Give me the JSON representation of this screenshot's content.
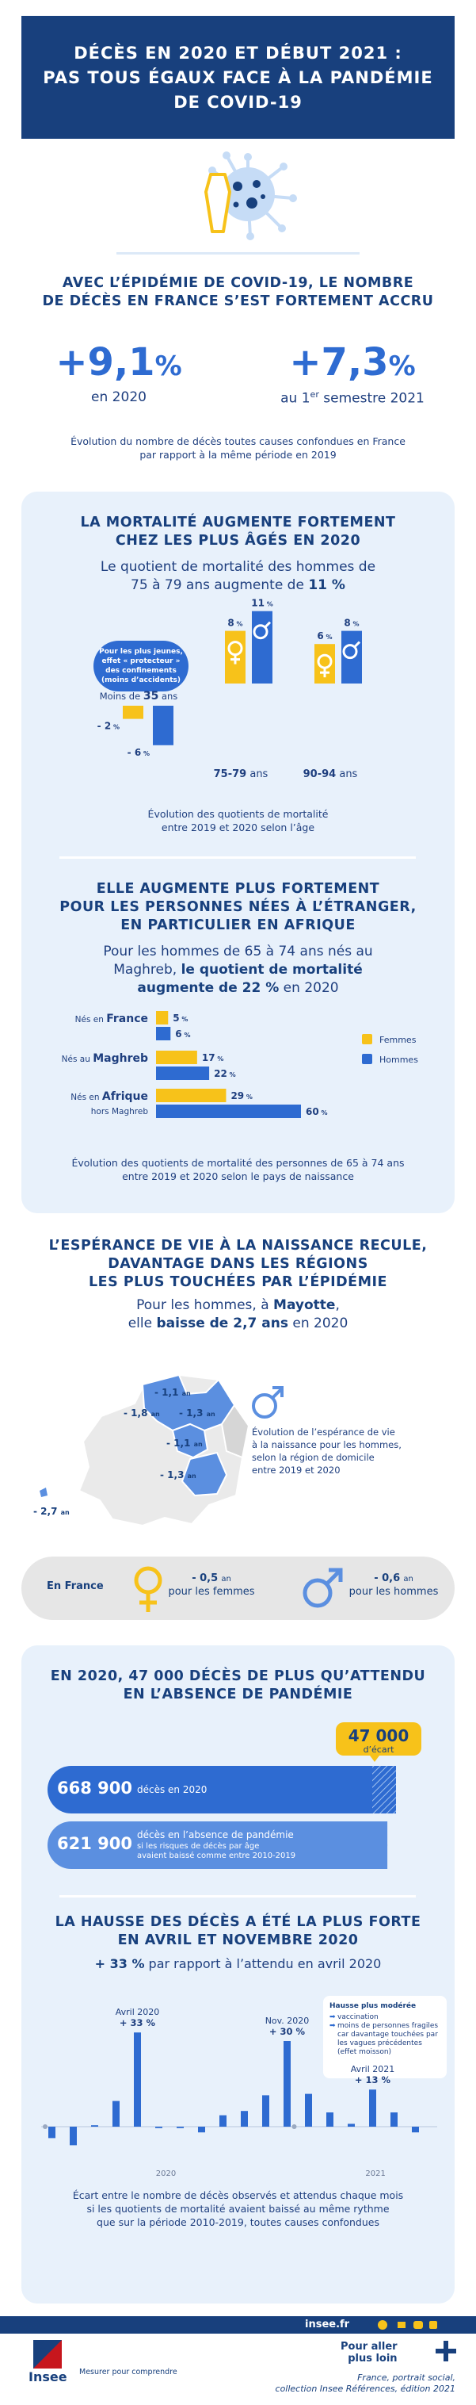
{
  "header": {
    "line1": "DÉCÈS EN 2020 ET DÉBUT 2021 :",
    "line2": "PAS TOUS ÉGAUX FACE À LA PANDÉMIE",
    "line3": "DE COVID-19"
  },
  "intro": {
    "title1": "AVEC L’ÉPIDÉMIE DE COVID-19, LE NOMBRE",
    "title2": "DE DÉCÈS EN FRANCE S’EST FORTEMENT ACCRU",
    "stat1_value": "+9,1",
    "stat1_unit": "%",
    "stat1_label": "en 2020",
    "stat2_value": "+7,3",
    "stat2_unit": "%",
    "stat2_label_pre": "au 1",
    "stat2_label_sup": "er",
    "stat2_label_post": " semestre 2021",
    "note1": "Évolution du nombre de décès toutes causes confondues en France",
    "note2": "par rapport à la même période en 2019"
  },
  "age_section": {
    "title1": "LA MORTALITÉ AUGMENTE FORTEMENT",
    "title2": "CHEZ LES PLUS ÂGÉS EN 2020",
    "sub1": "Le quotient de mortalité des hommes de",
    "sub2_pre": "75 à 79 ans augmente de ",
    "sub2_bold": "11 %",
    "bubble": [
      "Pour les plus jeunes,",
      "effet « protecteur »",
      "des confinements",
      "(moins d’accidents)"
    ],
    "note1": "Évolution des quotients de mortalité",
    "note2": "entre 2019 et 2020 selon l’âge"
  },
  "foreign_section": {
    "title1": "ELLE AUGMENTE PLUS FORTEMENT",
    "title2": "POUR LES PERSONNES NÉES À L’ÉTRANGER,",
    "title3": "EN PARTICULIER EN AFRIQUE",
    "sub1": "Pour les hommes de 65 à 74 ans nés au",
    "sub2_pre": "Maghreb, ",
    "sub2_bold": "le quotient de mortalité",
    "sub3_bold": "augmente de 22 %",
    "sub3_post": " en 2020",
    "note1": "Évolution des quotients de mortalité des personnes de 65 à 74 ans",
    "note2": "entre 2019 et 2020 selon le pays de naissance"
  },
  "life_section": {
    "title1": "L’ESPÉRANCE DE VIE À LA NAISSANCE RECULE,",
    "title2": "DAVANTAGE DANS LES RÉGIONS",
    "title3": "LES PLUS TOUCHÉES PAR L’ÉPIDÉMIE",
    "sub1_pre": "Pour les hommes, à ",
    "sub1_bold": "Mayotte",
    "sub1_post": ",",
    "sub2_pre": "elle ",
    "sub2_bold": "baisse de 2,7 ans",
    "sub2_post": " en 2020",
    "map_labels": [
      "- 1,1",
      "- 1,8",
      "- 1,3",
      "- 1,1",
      "- 1,3",
      "- 2,7"
    ],
    "map_unit": "an",
    "legend1": "Évolution de l’espérance de vie",
    "legend2": "à la naissance pour les hommes,",
    "legend3": "selon la région de domicile",
    "legend4": "entre 2019 et 2020",
    "france_label": "En France",
    "women_value": "- 0,5",
    "women_unit": "an",
    "women_label": "pour les femmes",
    "men_value": "- 0,6",
    "men_unit": "an",
    "men_label": "pour les hommes"
  },
  "excess_section": {
    "title1": "EN 2020, 47 000 DÉCÈS DE PLUS QU’ATTENDU",
    "title2": "EN L’ABSENCE DE PANDÉMIE",
    "gap_value": "47 000",
    "gap_label": "d’écart",
    "bar1_value": "668 900",
    "bar1_label": "décès en 2020",
    "bar2_value": "621 900",
    "bar2_label1": "décès en l’absence de pandémie",
    "bar2_label2": "si les risques de décès par âge",
    "bar2_label3": "avaient baissé comme entre 2010-2019"
  },
  "monthly_section": {
    "title1": "LA HAUSSE DES DÉCÈS A ÉTÉ LA PLUS FORTE",
    "title2": "EN AVRIL ET NOVEMBRE 2020",
    "sub_bold": "+ 33 %",
    "sub_post": " par rapport à l’attendu en avril 2020",
    "legend_title": "Hausse plus modérée",
    "legend_items": [
      "vaccination",
      "moins de personnes fragiles car davantage touchées par les vagues précédentes (effet moisson)"
    ],
    "note1": "Écart entre le nombre de décès observés et attendus chaque mois",
    "note2": "si les quotients de mortalité avaient baissé au même rythme",
    "note3": "que sur la période 2010-2019, toutes causes confondues"
  },
  "footer": {
    "site": "insee.fr",
    "more_title1": "Pour aller",
    "more_title2": "plus loin",
    "ref1": "France, portrait social,",
    "ref2": "collection Insee Références, édition 2021",
    "logo_text": "Insee",
    "tagline": "Mesurer pour comprendre"
  },
  "colors": {
    "navy": "#18407d",
    "blue": "#2e6bd1",
    "yellow": "#f7c21a",
    "panel": "#e8f1fb"
  },
  "chart_data": [
    {
      "type": "bar",
      "name": "age",
      "categories": [
        "Moins de 35 ans",
        "75-79 ans",
        "90-94 ans"
      ],
      "series": [
        {
          "name": "Femmes",
          "values": [
            -2,
            8,
            6
          ]
        },
        {
          "name": "Hommes",
          "values": [
            -6,
            11,
            8
          ]
        }
      ],
      "tick_labels": {
        "cat0_pre": "Moins de ",
        "cat0_bold": "35",
        "cat0_post": " ans",
        "cat1_bold": "75-79",
        "cat1_post": " ans",
        "cat2_bold": "90-94",
        "cat2_post": " ans"
      },
      "value_labels": {
        "f": [
          "- 2",
          "8",
          "6"
        ],
        "m": [
          "- 6",
          "11",
          "8"
        ],
        "unit": "%"
      }
    },
    {
      "type": "bar",
      "name": "birthplace",
      "categories": [
        "Nés en France",
        "Nés au Maghreb",
        "Nés en Afrique hors Maghreb"
      ],
      "tick_labels": [
        {
          "pre": "Nés en ",
          "big": "France",
          "line2": ""
        },
        {
          "pre": "Nés au ",
          "big": "Maghreb",
          "line2": ""
        },
        {
          "pre": "Nés en ",
          "big": "Afrique",
          "line2": "hors Maghreb"
        }
      ],
      "series": [
        {
          "name": "Femmes",
          "values": [
            5,
            17,
            29
          ]
        },
        {
          "name": "Hommes",
          "values": [
            6,
            22,
            60
          ]
        }
      ],
      "unit": "%"
    },
    {
      "type": "bar",
      "name": "excess_deaths",
      "categories": [
        "décès en 2020",
        "décès en l’absence de pandémie"
      ],
      "values": [
        668900,
        621900
      ]
    },
    {
      "type": "bar",
      "name": "monthly_gap",
      "x_labels": [
        "2020",
        "2021"
      ],
      "values": [
        -4,
        -6.5,
        0.5,
        9,
        33,
        -0.5,
        -0.5,
        -2,
        4,
        5.5,
        11,
        30,
        11.5,
        5,
        1,
        13,
        5,
        -2
      ],
      "annotations": [
        {
          "index": 4,
          "label1": "Avril 2020",
          "label2": "+ 33 %"
        },
        {
          "index": 11,
          "label1": "Nov. 2020",
          "label2": "+ 30 %"
        },
        {
          "index": 15,
          "label1": "Avril 2021",
          "label2": "+ 13 %"
        }
      ]
    }
  ]
}
